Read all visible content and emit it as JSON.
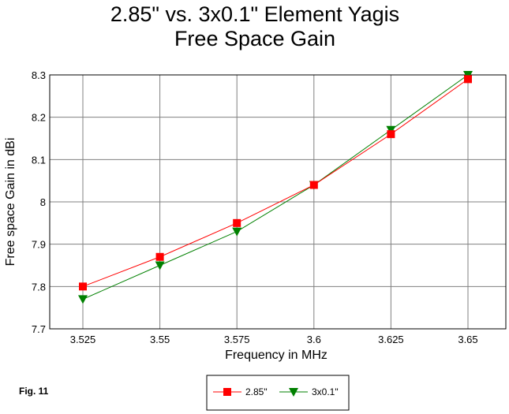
{
  "figure_label": "Fig. 11",
  "chart_data": {
    "type": "line",
    "title": "2.85\" vs. 3x0.1\" Element Yagis",
    "subtitle": "Free Space Gain",
    "xlabel": "Frequency in MHz",
    "ylabel": "Free space Gain in dBi",
    "categories": [
      "3.525",
      "3.55",
      "3.575",
      "3.6",
      "3.625",
      "3.65"
    ],
    "x": [
      3.525,
      3.55,
      3.575,
      3.6,
      3.625,
      3.65
    ],
    "ylim": [
      7.7,
      8.3
    ],
    "yticks": [
      "7.7",
      "7.8",
      "7.9",
      "8",
      "8.1",
      "8.2",
      "8.3"
    ],
    "grid": true,
    "legend_position": "bottom",
    "series": [
      {
        "name": "2.85\"",
        "values": [
          7.8,
          7.87,
          7.95,
          8.04,
          8.16,
          8.29
        ],
        "color": "#ff0000",
        "marker": "square"
      },
      {
        "name": "3x0.1\"",
        "values": [
          7.77,
          7.85,
          7.93,
          8.04,
          8.17,
          8.3
        ],
        "color": "#008000",
        "marker": "triangle-down"
      }
    ]
  }
}
